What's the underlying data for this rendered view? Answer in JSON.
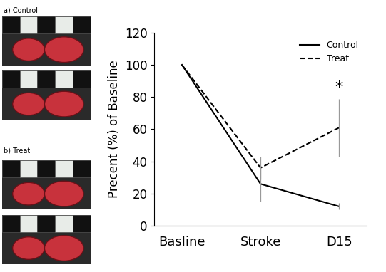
{
  "panels": [
    "a) Control",
    "b) Treat"
  ],
  "chart_data": {
    "type": "line",
    "categories": [
      "Basline",
      "Stroke",
      "D15"
    ],
    "y_label": "Precent (%) of Baseline",
    "ylim": [
      0,
      120
    ],
    "yticks": [
      0,
      20,
      40,
      60,
      80,
      100,
      120
    ],
    "legend": "upper right",
    "series": [
      {
        "name": "Control",
        "color": "#000000",
        "line_style": "solid",
        "values": [
          100,
          26,
          12
        ],
        "errors": [
          null,
          11,
          2
        ]
      },
      {
        "name": "Treat",
        "color": "#000000",
        "line_style": "dashed",
        "values": [
          100,
          36,
          61
        ],
        "errors": [
          null,
          7,
          18
        ]
      }
    ],
    "annotations": [
      {
        "text": "*",
        "category": "D15",
        "y": 86
      }
    ]
  }
}
